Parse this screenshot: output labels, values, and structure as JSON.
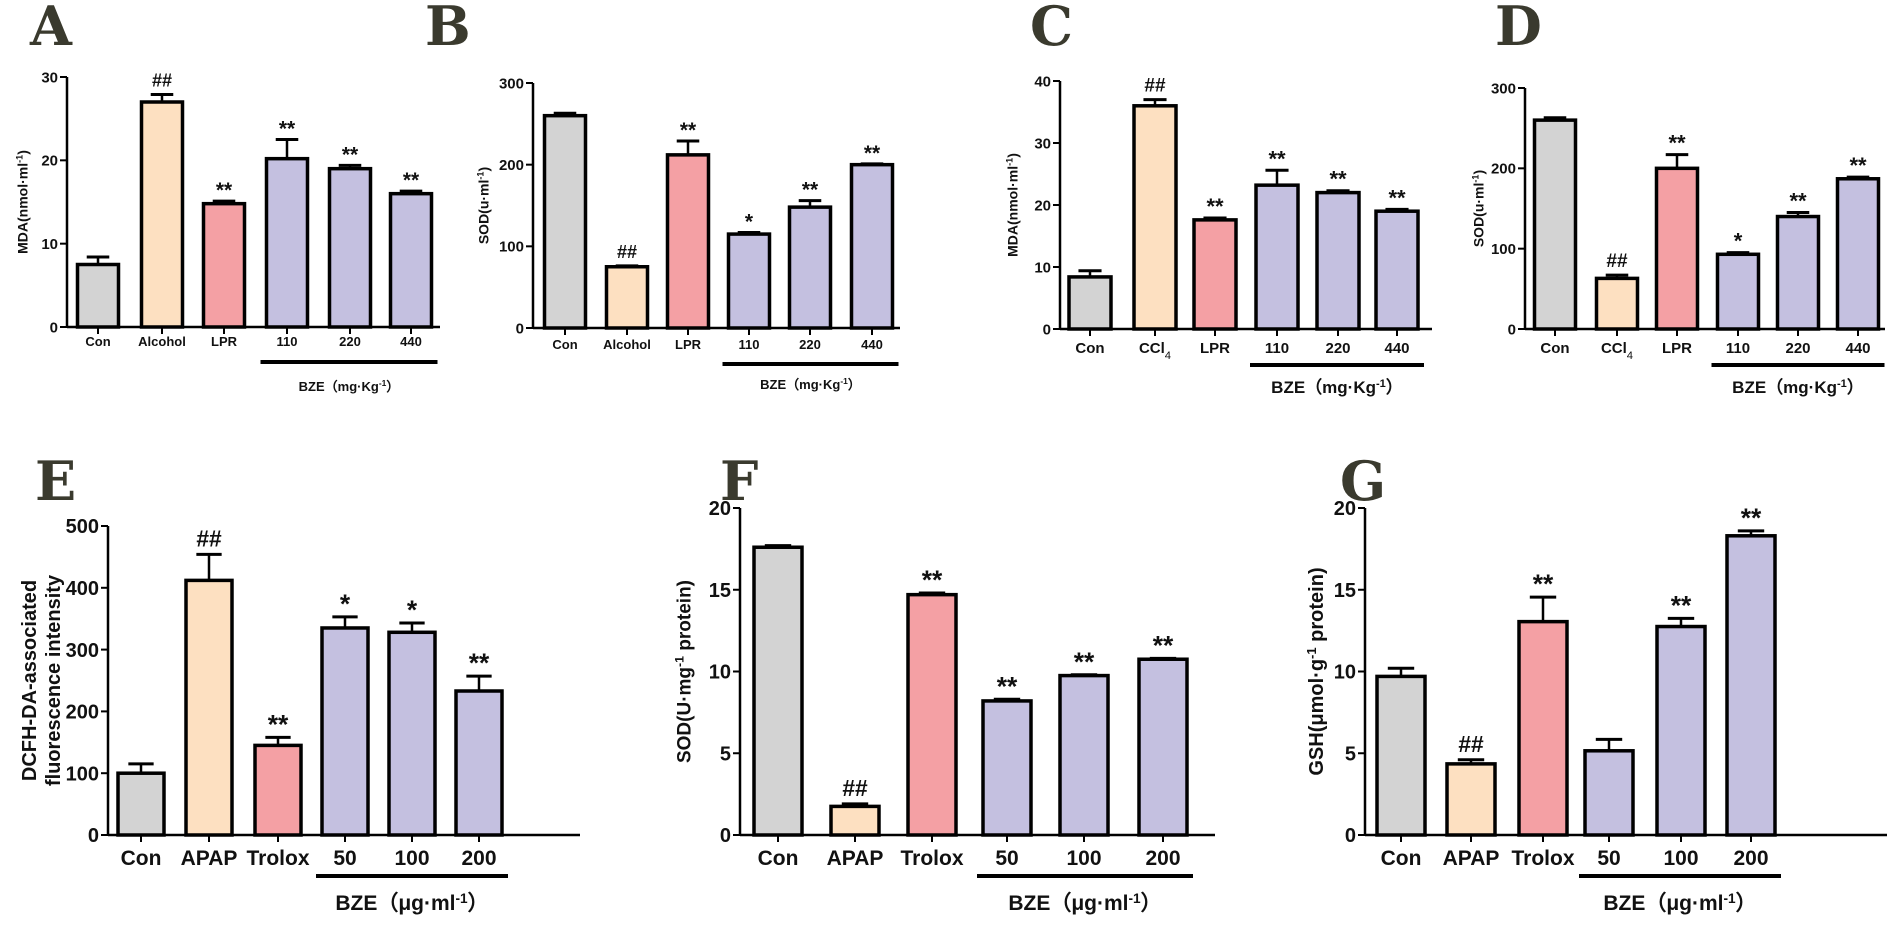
{
  "figure": {
    "colors": {
      "control": "#d3d3d3",
      "model": "#fde0c1",
      "positive": "#f4a0a4",
      "treatment": "#c4c0e0",
      "stroke": "#000000"
    }
  },
  "chart_data": [
    {
      "panel": "A",
      "type": "bar",
      "title": "",
      "ylabel": "MDA(nmol·ml⁻¹)",
      "xlabel": "",
      "ylim": [
        0,
        30
      ],
      "yticks": [
        0,
        10,
        20,
        30
      ],
      "categories": [
        "Con",
        "Alcohol",
        "LPR",
        "110",
        "220",
        "440"
      ],
      "values": [
        7.5,
        27.0,
        14.8,
        20.2,
        19.0,
        16.0
      ],
      "errors": [
        0.9,
        0.9,
        0.3,
        2.3,
        0.4,
        0.3
      ],
      "significance": [
        "",
        "##",
        "**",
        "**",
        "**",
        "**"
      ],
      "bar_groups": [
        "control",
        "model",
        "positive",
        "treatment",
        "treatment",
        "treatment"
      ],
      "group_bracket": {
        "label": "BZE（mg·Kg⁻¹）",
        "from": 3,
        "to": 5
      },
      "grid": false
    },
    {
      "panel": "B",
      "type": "bar",
      "title": "",
      "ylabel": "SOD(u·ml⁻¹)",
      "xlabel": "",
      "ylim": [
        0,
        300
      ],
      "yticks": [
        0,
        100,
        200,
        300
      ],
      "categories": [
        "Con",
        "Alcohol",
        "LPR",
        "110",
        "220",
        "440"
      ],
      "values": [
        260,
        75,
        212,
        115,
        148,
        200
      ],
      "errors": [
        3,
        1,
        17,
        2,
        8,
        1
      ],
      "significance": [
        "",
        "##",
        "**",
        "*",
        "**",
        "**"
      ],
      "bar_groups": [
        "control",
        "model",
        "positive",
        "treatment",
        "treatment",
        "treatment"
      ],
      "group_bracket": {
        "label": "BZE（mg·Kg⁻¹）",
        "from": 3,
        "to": 5
      },
      "grid": false
    },
    {
      "panel": "C",
      "type": "bar",
      "title": "",
      "ylabel": "MDA(nmol·ml⁻¹)",
      "xlabel": "",
      "ylim": [
        0,
        40
      ],
      "yticks": [
        0,
        10,
        20,
        30,
        40
      ],
      "categories": [
        "Con",
        "CCl₄",
        "LPR",
        "110",
        "220",
        "440"
      ],
      "values": [
        8.4,
        36.0,
        17.6,
        23.2,
        22.0,
        19.0
      ],
      "errors": [
        1.0,
        1.0,
        0.3,
        2.4,
        0.3,
        0.3
      ],
      "significance": [
        "",
        "##",
        "**",
        "**",
        "**",
        "**"
      ],
      "bar_groups": [
        "control",
        "model",
        "positive",
        "treatment",
        "treatment",
        "treatment"
      ],
      "group_bracket": {
        "label": "BZE（mg·Kg⁻¹）",
        "from": 3,
        "to": 5
      },
      "grid": false
    },
    {
      "panel": "D",
      "type": "bar",
      "title": "",
      "ylabel": "SOD(u·ml⁻¹)",
      "xlabel": "",
      "ylim": [
        0,
        300
      ],
      "yticks": [
        0,
        100,
        200,
        300
      ],
      "categories": [
        "Con",
        "CCl₄",
        "LPR",
        "110",
        "220",
        "440"
      ],
      "values": [
        260,
        63,
        200,
        93,
        140,
        187
      ],
      "errors": [
        3,
        4,
        17,
        2,
        5,
        2
      ],
      "significance": [
        "",
        "##",
        "**",
        "*",
        "**",
        "**"
      ],
      "bar_groups": [
        "control",
        "model",
        "positive",
        "treatment",
        "treatment",
        "treatment"
      ],
      "group_bracket": {
        "label": "BZE（mg·Kg⁻¹）",
        "from": 3,
        "to": 5
      },
      "grid": false
    },
    {
      "panel": "E",
      "type": "bar",
      "title": "",
      "ylabel": "DCFH-DA-associated fluorescence intensity",
      "ylabel_lines": [
        "DCFH-DA-associated",
        "fluorescence intensity"
      ],
      "xlabel": "",
      "ylim": [
        0,
        500
      ],
      "yticks": [
        0,
        100,
        200,
        300,
        400,
        500
      ],
      "categories": [
        "Con",
        "APAP",
        "Trolox",
        "50",
        "100",
        "200"
      ],
      "values": [
        100,
        412,
        145,
        335,
        328,
        233
      ],
      "errors": [
        15,
        42,
        13,
        18,
        15,
        24
      ],
      "significance": [
        "",
        "##",
        "**",
        "*",
        "*",
        "**"
      ],
      "bar_groups": [
        "control",
        "model",
        "positive",
        "treatment",
        "treatment",
        "treatment"
      ],
      "group_bracket": {
        "label": "BZE（μg·ml⁻¹）",
        "from": 3,
        "to": 5
      },
      "grid": false
    },
    {
      "panel": "F",
      "type": "bar",
      "title": "",
      "ylabel": "SOD(U·mg⁻¹ protein)",
      "xlabel": "",
      "ylim": [
        0,
        20
      ],
      "yticks": [
        0,
        5,
        10,
        15,
        20
      ],
      "categories": [
        "Con",
        "APAP",
        "Trolox",
        "50",
        "100",
        "200"
      ],
      "values": [
        17.6,
        1.75,
        14.7,
        8.2,
        9.75,
        10.75
      ],
      "errors": [
        0.1,
        0.15,
        0.1,
        0.1,
        0.05,
        0.05
      ],
      "significance": [
        "",
        "##",
        "**",
        "**",
        "**",
        "**"
      ],
      "bar_groups": [
        "control",
        "model",
        "positive",
        "treatment",
        "treatment",
        "treatment"
      ],
      "group_bracket": {
        "label": "BZE（μg·ml⁻¹）",
        "from": 3,
        "to": 5
      },
      "grid": false
    },
    {
      "panel": "G",
      "type": "bar",
      "title": "",
      "ylabel": "GSH(μmol·g⁻¹ protein)",
      "xlabel": "",
      "ylim": [
        0,
        20
      ],
      "yticks": [
        0,
        5,
        10,
        15,
        20
      ],
      "categories": [
        "Con",
        "APAP",
        "Trolox",
        "50",
        "100",
        "200"
      ],
      "values": [
        9.7,
        4.35,
        13.05,
        5.15,
        12.75,
        18.3
      ],
      "errors": [
        0.5,
        0.25,
        1.5,
        0.7,
        0.5,
        0.3
      ],
      "significance": [
        "",
        "##",
        "**",
        "",
        "**",
        "**"
      ],
      "bar_groups": [
        "control",
        "model",
        "positive",
        "treatment",
        "treatment",
        "treatment"
      ],
      "group_bracket": {
        "label": "BZE（μg·ml⁻¹）",
        "from": 3,
        "to": 5
      },
      "grid": false
    }
  ]
}
